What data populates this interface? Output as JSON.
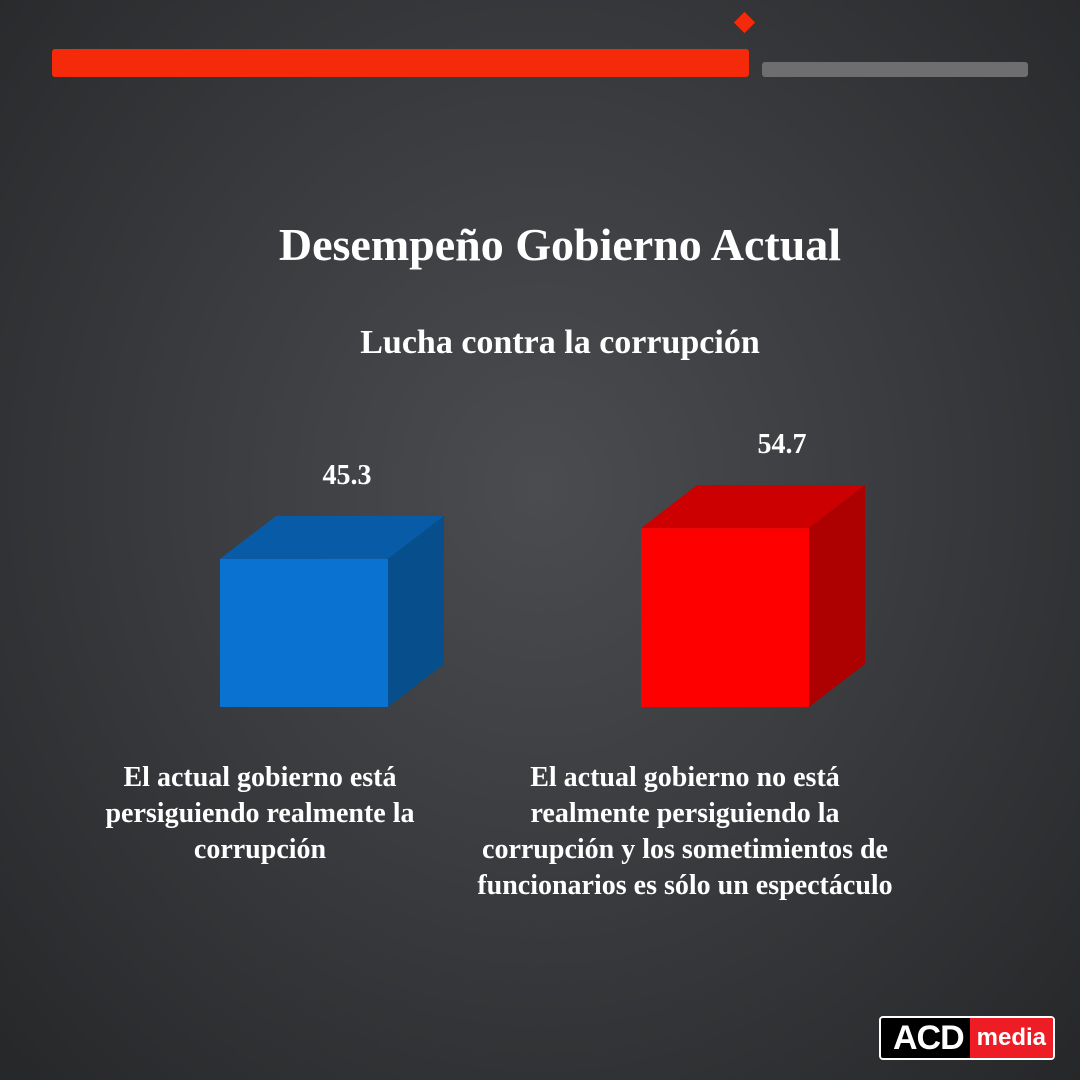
{
  "header": {
    "progress_colors": {
      "active": "#f42a0a",
      "inactive": "#6e6e70"
    }
  },
  "chart_data": {
    "type": "bar",
    "style": "3d-cube",
    "title": "Desempeño Gobierno Actual",
    "subtitle": "Lucha contra la corrupción",
    "categories": [
      "El actual gobierno está persiguiendo realmente la corrupción",
      "El actual gobierno no está realmente persiguiendo la corrupción y los sometimientos de funcionarios es sólo un espectáculo"
    ],
    "values": [
      45.3,
      54.7
    ],
    "data_labels": [
      "45.3",
      "54.7"
    ],
    "colors": [
      "#0a72d0",
      "#ff0000"
    ],
    "grid": false,
    "legend": "none"
  },
  "logo": {
    "text_left": "ACD",
    "text_right": "media"
  }
}
